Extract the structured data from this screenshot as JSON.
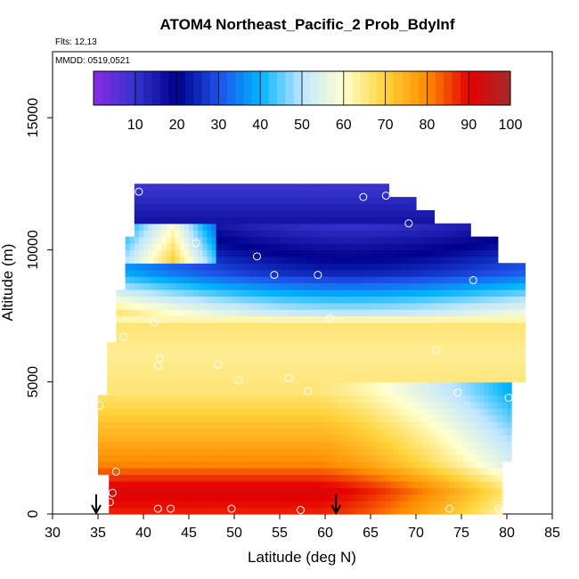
{
  "chart_data": {
    "type": "heatmap",
    "title": "ATOM4 Northeast_Pacific_2 Prob_BdyInf",
    "subtitle_lines": [
      "Flts: 12,13",
      "MMDD: 0519,0521"
    ],
    "xlabel": "Latitude (deg N)",
    "ylabel": "Altitude (m)",
    "xlim": [
      30,
      85
    ],
    "ylim": [
      0,
      17500
    ],
    "x_ticks": [
      30,
      35,
      40,
      45,
      50,
      55,
      60,
      65,
      70,
      75,
      80,
      85
    ],
    "y_ticks": [
      0,
      5000,
      10000,
      15000
    ],
    "colorbar": {
      "range": [
        0,
        100
      ],
      "ticks": [
        10,
        20,
        30,
        40,
        50,
        60,
        70,
        80,
        90,
        100
      ],
      "colors": [
        "#8a2be2",
        "#3333cc",
        "#00008b",
        "#1e50e8",
        "#00b4ff",
        "#bfe6ff",
        "#ffffd0",
        "#ffd33a",
        "#ff8c00",
        "#e60000",
        "#a52a2a"
      ],
      "placement": "top"
    },
    "approx_field_bands": [
      {
        "alt_range": [
          0,
          1000
        ],
        "value_range": [
          50,
          95
        ]
      },
      {
        "alt_range": [
          1000,
          4500
        ],
        "value_range": [
          55,
          88
        ]
      },
      {
        "alt_range": [
          4500,
          8000
        ],
        "value_range": [
          55,
          75
        ]
      },
      {
        "alt_range": [
          8000,
          10500
        ],
        "value_range": [
          20,
          55
        ]
      },
      {
        "alt_range": [
          10500,
          12500
        ],
        "value_range": [
          2,
          35
        ]
      }
    ],
    "markers": [
      {
        "lat": 34.8,
        "alt": 0,
        "label": "arrow"
      },
      {
        "lat": 61.2,
        "alt": 0,
        "label": "arrow"
      }
    ],
    "sample_points": [
      {
        "lat": 39.5,
        "alt": 12200
      },
      {
        "lat": 64.2,
        "alt": 12000
      },
      {
        "lat": 66.7,
        "alt": 12050
      },
      {
        "lat": 69.2,
        "alt": 11000
      },
      {
        "lat": 45.8,
        "alt": 10250
      },
      {
        "lat": 52.5,
        "alt": 9750
      },
      {
        "lat": 54.4,
        "alt": 9050
      },
      {
        "lat": 59.2,
        "alt": 9050
      },
      {
        "lat": 76.3,
        "alt": 8850
      },
      {
        "lat": 60.5,
        "alt": 7400
      },
      {
        "lat": 41.2,
        "alt": 7250
      },
      {
        "lat": 37.8,
        "alt": 6700
      },
      {
        "lat": 41.8,
        "alt": 5900
      },
      {
        "lat": 41.6,
        "alt": 5600
      },
      {
        "lat": 48.2,
        "alt": 5650
      },
      {
        "lat": 50.5,
        "alt": 5050
      },
      {
        "lat": 56.0,
        "alt": 5150
      },
      {
        "lat": 58.1,
        "alt": 4650
      },
      {
        "lat": 72.2,
        "alt": 6200
      },
      {
        "lat": 74.6,
        "alt": 4600
      },
      {
        "lat": 80.2,
        "alt": 4400
      },
      {
        "lat": 35.2,
        "alt": 4100
      },
      {
        "lat": 37.0,
        "alt": 1600
      },
      {
        "lat": 36.6,
        "alt": 800
      },
      {
        "lat": 36.3,
        "alt": 450
      },
      {
        "lat": 41.6,
        "alt": 200
      },
      {
        "lat": 43.0,
        "alt": 200
      },
      {
        "lat": 49.7,
        "alt": 200
      },
      {
        "lat": 57.3,
        "alt": 150
      },
      {
        "lat": 73.7,
        "alt": 200
      },
      {
        "lat": 79.1,
        "alt": 200
      }
    ]
  }
}
